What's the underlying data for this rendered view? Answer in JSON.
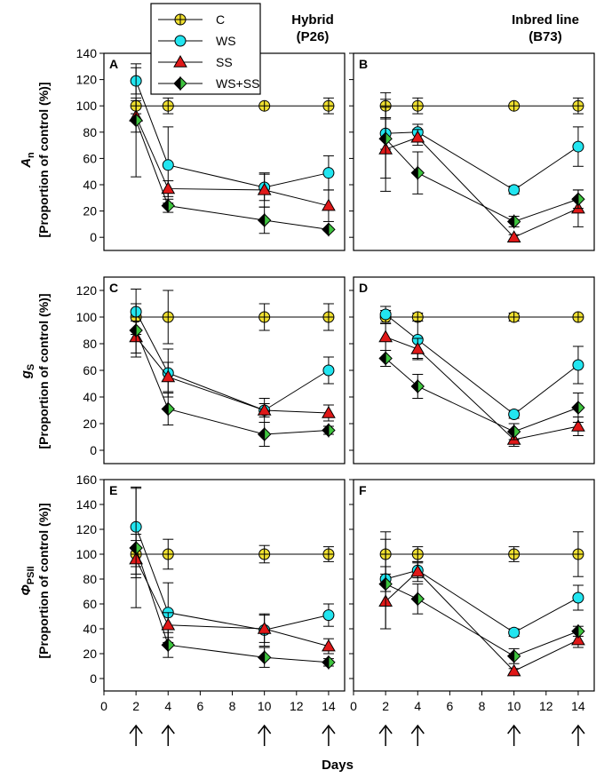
{
  "figure": {
    "legend": [
      "C",
      "WS",
      "SS",
      "WS+SS"
    ],
    "columns": [
      {
        "title_line1": "Hybrid",
        "title_line2": "(P26)"
      },
      {
        "title_line1": "Inbred line",
        "title_line2": "(B73)"
      }
    ],
    "row_labels": [
      {
        "main": "A",
        "sub": "n",
        "bracket": "[Proportion of control (%)]"
      },
      {
        "main": "g",
        "sub": "S",
        "bracket": "[Proportion of control (%)]"
      },
      {
        "main": "Φ",
        "sub": "PSII",
        "bracket": "[Proportion of control (%)]"
      }
    ],
    "xlabel": "Days",
    "arrow_days": [
      2,
      4,
      10,
      14
    ]
  },
  "series_style": {
    "C": {
      "marker": "circle-cross",
      "fill": "#f0e030"
    },
    "WS": {
      "marker": "circle",
      "fill": "#22e5f0"
    },
    "SS": {
      "marker": "triangle",
      "fill": "#e01818"
    },
    "WS+SS": {
      "marker": "diamond-split",
      "fill": "#3ec43e",
      "fill2": "#000000"
    }
  },
  "chart_data": [
    {
      "type": "line",
      "panel": "A",
      "x": [
        2,
        4,
        10,
        14
      ],
      "xlim": [
        0,
        15
      ],
      "xticks": [
        0,
        2,
        4,
        6,
        8,
        10,
        12,
        14
      ],
      "ylim": [
        -10,
        140
      ],
      "yticks": [
        0,
        20,
        40,
        60,
        80,
        100,
        120,
        140
      ],
      "series": [
        {
          "name": "C",
          "values": [
            100,
            100,
            100,
            100
          ],
          "err": [
            6,
            6,
            0,
            6
          ]
        },
        {
          "name": "WS",
          "values": [
            119,
            55,
            38,
            49
          ],
          "err": [
            10,
            29,
            10,
            13
          ]
        },
        {
          "name": "SS",
          "values": [
            92,
            37,
            36,
            24
          ],
          "err": [
            12,
            6,
            13,
            12
          ]
        },
        {
          "name": "WS+SS",
          "values": [
            89,
            24,
            13,
            6
          ],
          "err": [
            43,
            5,
            10,
            1
          ]
        }
      ]
    },
    {
      "type": "line",
      "panel": "B",
      "x": [
        2,
        4,
        10,
        14
      ],
      "xlim": [
        0,
        15
      ],
      "xticks": [
        0,
        2,
        4,
        6,
        8,
        10,
        12,
        14
      ],
      "ylim": [
        -10,
        140
      ],
      "yticks": [
        0,
        20,
        40,
        60,
        80,
        100,
        120,
        140
      ],
      "series": [
        {
          "name": "C",
          "values": [
            100,
            100,
            100,
            100
          ],
          "err": [
            10,
            6,
            0,
            6
          ]
        },
        {
          "name": "WS",
          "values": [
            79,
            80,
            36,
            69
          ],
          "err": [
            12,
            6,
            3,
            15
          ]
        },
        {
          "name": "SS",
          "values": [
            67,
            76,
            0,
            22
          ],
          "err": [
            32,
            6,
            2,
            14
          ]
        },
        {
          "name": "WS+SS",
          "values": [
            75,
            49,
            12,
            29
          ],
          "err": [
            30,
            16,
            4,
            7
          ]
        }
      ]
    },
    {
      "type": "line",
      "panel": "C",
      "x": [
        2,
        4,
        10,
        14
      ],
      "xlim": [
        0,
        15
      ],
      "xticks": [
        0,
        2,
        4,
        6,
        8,
        10,
        12,
        14
      ],
      "ylim": [
        -10,
        130
      ],
      "yticks": [
        0,
        20,
        40,
        60,
        80,
        100,
        120
      ],
      "series": [
        {
          "name": "C",
          "values": [
            100,
            100,
            100,
            100
          ],
          "err": [
            10,
            20,
            10,
            10
          ]
        },
        {
          "name": "WS",
          "values": [
            104,
            58,
            30,
            60
          ],
          "err": [
            17,
            18,
            9,
            10
          ]
        },
        {
          "name": "SS",
          "values": [
            85,
            55,
            30,
            28
          ],
          "err": [
            12,
            11,
            5,
            6
          ]
        },
        {
          "name": "WS+SS",
          "values": [
            90,
            31,
            12,
            15
          ],
          "err": [
            20,
            12,
            9,
            3
          ]
        }
      ]
    },
    {
      "type": "line",
      "panel": "D",
      "x": [
        2,
        4,
        10,
        14
      ],
      "xlim": [
        0,
        15
      ],
      "xticks": [
        0,
        2,
        4,
        6,
        8,
        10,
        12,
        14
      ],
      "ylim": [
        -10,
        130
      ],
      "yticks": [
        0,
        20,
        40,
        60,
        80,
        100,
        120
      ],
      "series": [
        {
          "name": "C",
          "values": [
            100,
            100,
            100,
            100
          ],
          "err": [
            5,
            3,
            3,
            0
          ]
        },
        {
          "name": "WS",
          "values": [
            102,
            83,
            27,
            64
          ],
          "err": [
            6,
            14,
            3,
            14
          ]
        },
        {
          "name": "SS",
          "values": [
            85,
            76,
            8,
            18
          ],
          "err": [
            10,
            8,
            5,
            7
          ]
        },
        {
          "name": "WS+SS",
          "values": [
            69,
            48,
            14,
            32
          ],
          "err": [
            6,
            9,
            6,
            11
          ]
        }
      ]
    },
    {
      "type": "line",
      "panel": "E",
      "x": [
        2,
        4,
        10,
        14
      ],
      "xlim": [
        0,
        15
      ],
      "xticks": [
        0,
        2,
        4,
        6,
        8,
        10,
        12,
        14
      ],
      "ylim": [
        -10,
        160
      ],
      "yticks": [
        0,
        20,
        40,
        60,
        80,
        100,
        120,
        140,
        160
      ],
      "series": [
        {
          "name": "C",
          "values": [
            100,
            100,
            100,
            100
          ],
          "err": [
            16,
            12,
            7,
            6
          ]
        },
        {
          "name": "WS",
          "values": [
            122,
            53,
            39,
            51
          ],
          "err": [
            32,
            24,
            13,
            9
          ]
        },
        {
          "name": "SS",
          "values": [
            96,
            43,
            40,
            26
          ],
          "err": [
            15,
            10,
            11,
            6
          ]
        },
        {
          "name": "WS+SS",
          "values": [
            105,
            27,
            17,
            13
          ],
          "err": [
            48,
            10,
            8,
            3
          ]
        }
      ]
    },
    {
      "type": "line",
      "panel": "F",
      "x": [
        2,
        4,
        10,
        14
      ],
      "xlim": [
        0,
        15
      ],
      "xticks": [
        0,
        2,
        4,
        6,
        8,
        10,
        12,
        14
      ],
      "ylim": [
        -10,
        160
      ],
      "yticks": [
        0,
        20,
        40,
        60,
        80,
        100,
        120,
        140,
        160
      ],
      "series": [
        {
          "name": "C",
          "values": [
            100,
            100,
            100,
            100
          ],
          "err": [
            18,
            6,
            6,
            18
          ]
        },
        {
          "name": "WS",
          "values": [
            80,
            87,
            37,
            65
          ],
          "err": [
            10,
            6,
            3,
            10
          ]
        },
        {
          "name": "SS",
          "values": [
            62,
            86,
            6,
            31
          ],
          "err": [
            22,
            8,
            2,
            6
          ]
        },
        {
          "name": "WS+SS",
          "values": [
            76,
            64,
            18,
            38
          ],
          "err": [
            36,
            12,
            6,
            4
          ]
        }
      ]
    }
  ]
}
